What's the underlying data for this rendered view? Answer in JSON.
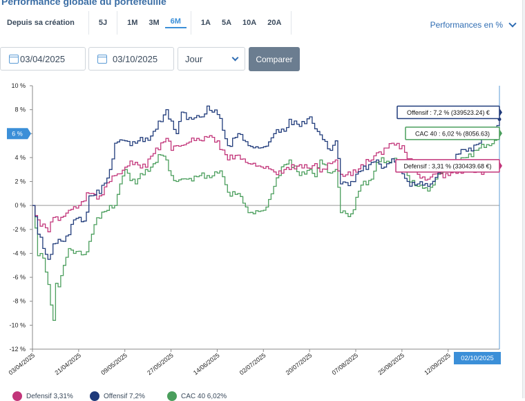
{
  "header": {
    "title": "Performance globale du portefeuille",
    "periods": [
      "Depuis sa création",
      "5J",
      "1M",
      "3M",
      "6M",
      "1A",
      "5A",
      "10A",
      "20A"
    ],
    "active_period": "6M",
    "perf_mode": "Performances en %"
  },
  "filters": {
    "date_from": "03/04/2025",
    "date_to": "03/10/2025",
    "granularity": "Jour",
    "compare_label": "Comparer"
  },
  "colors": {
    "defensif": "#c2357a",
    "offensif": "#1f3a7a",
    "cac40": "#4a9e5c",
    "accent": "#3b8fd8"
  },
  "chart_data": {
    "type": "line",
    "ylim": [
      -12,
      10
    ],
    "yticks": [
      "10 %",
      "8 %",
      "6 %",
      "4 %",
      "2 %",
      "0 %",
      "-2 %",
      "-4 %",
      "-6 %",
      "-8 %",
      "-10 %",
      "-12 %"
    ],
    "ytick_values": [
      10,
      8,
      6,
      4,
      2,
      0,
      -2,
      -4,
      -6,
      -8,
      -10,
      -12
    ],
    "x_labels": [
      "03/04/2025",
      "21/04/2025",
      "09/05/2025",
      "27/05/2025",
      "14/06/2025",
      "02/07/2025",
      "20/07/2025",
      "07/08/2025",
      "25/08/2025",
      "12/09/2025"
    ],
    "x_label_index": [
      0,
      18,
      36,
      54,
      72,
      90,
      108,
      126,
      144,
      162
    ],
    "n_points": 183,
    "crosshair_label": "02/10/2025",
    "crosshair_index": 182,
    "y_marker_label": "6 %",
    "y_marker_value": 6,
    "series": [
      {
        "name": "Offensif",
        "key": "offensif",
        "legend": "Offensif 7,2%",
        "tooltip": "Offensif : 7,2 % (339523.24) €",
        "final": 7.2,
        "anchors": [
          [
            0,
            0
          ],
          [
            2,
            -2.4
          ],
          [
            6,
            -4.5
          ],
          [
            8,
            -3.2
          ],
          [
            12,
            -3.0
          ],
          [
            16,
            -1.2
          ],
          [
            20,
            -1.3
          ],
          [
            22,
            0.8
          ],
          [
            26,
            1.0
          ],
          [
            30,
            3.0
          ],
          [
            32,
            5.2
          ],
          [
            36,
            5.4
          ],
          [
            40,
            5.2
          ],
          [
            46,
            5.8
          ],
          [
            50,
            7.0
          ],
          [
            52,
            8.0
          ],
          [
            56,
            6.0
          ],
          [
            58,
            7.8
          ],
          [
            62,
            7.2
          ],
          [
            66,
            7.4
          ],
          [
            68,
            8.3
          ],
          [
            72,
            7.6
          ],
          [
            76,
            5.0
          ],
          [
            80,
            6.0
          ],
          [
            84,
            5.0
          ],
          [
            88,
            4.8
          ],
          [
            90,
            4.9
          ],
          [
            94,
            6.0
          ],
          [
            98,
            6.2
          ],
          [
            100,
            7.2
          ],
          [
            104,
            6.6
          ],
          [
            108,
            7.4
          ],
          [
            110,
            6.4
          ],
          [
            112,
            5.9
          ],
          [
            116,
            4.6
          ],
          [
            118,
            5.4
          ],
          [
            120,
            1.8
          ],
          [
            124,
            2.0
          ],
          [
            128,
            2.9
          ],
          [
            132,
            3.6
          ],
          [
            134,
            3.8
          ],
          [
            136,
            3.1
          ],
          [
            140,
            3.9
          ],
          [
            142,
            3.1
          ],
          [
            146,
            2.0
          ],
          [
            150,
            1.8
          ],
          [
            154,
            1.6
          ],
          [
            158,
            2.7
          ],
          [
            162,
            3.4
          ],
          [
            166,
            4.3
          ],
          [
            170,
            4.8
          ],
          [
            174,
            5.2
          ],
          [
            176,
            5.5
          ],
          [
            180,
            6.3
          ],
          [
            182,
            7.2
          ]
        ]
      },
      {
        "name": "Defensif",
        "key": "defensif",
        "legend": "Defensif 3,31%",
        "tooltip": "Defensif : 3,31 % (330439.68 €)",
        "final": 3.31,
        "anchors": [
          [
            0,
            0
          ],
          [
            2,
            -1.2
          ],
          [
            6,
            -2.2
          ],
          [
            8,
            -1.0
          ],
          [
            12,
            -0.9
          ],
          [
            14,
            -0.4
          ],
          [
            16,
            -0.1
          ],
          [
            18,
            0.0
          ],
          [
            22,
            1.0
          ],
          [
            26,
            0.8
          ],
          [
            30,
            2.0
          ],
          [
            32,
            2.5
          ],
          [
            36,
            3.2
          ],
          [
            40,
            3.6
          ],
          [
            44,
            3.2
          ],
          [
            48,
            4.8
          ],
          [
            52,
            5.6
          ],
          [
            54,
            4.6
          ],
          [
            56,
            5.0
          ],
          [
            60,
            5.2
          ],
          [
            64,
            5.6
          ],
          [
            66,
            5.4
          ],
          [
            68,
            5.7
          ],
          [
            72,
            5.4
          ],
          [
            76,
            3.8
          ],
          [
            80,
            4.2
          ],
          [
            84,
            3.5
          ],
          [
            88,
            3.3
          ],
          [
            90,
            3.1
          ],
          [
            94,
            2.8
          ],
          [
            98,
            3.0
          ],
          [
            100,
            3.0
          ],
          [
            104,
            3.4
          ],
          [
            108,
            3.1
          ],
          [
            110,
            3.5
          ],
          [
            112,
            2.8
          ],
          [
            116,
            3.5
          ],
          [
            118,
            3.8
          ],
          [
            120,
            2.6
          ],
          [
            124,
            2.5
          ],
          [
            128,
            3.4
          ],
          [
            132,
            3.8
          ],
          [
            134,
            4.4
          ],
          [
            138,
            4.8
          ],
          [
            140,
            5.2
          ],
          [
            144,
            5.0
          ],
          [
            146,
            3.9
          ],
          [
            150,
            2.6
          ],
          [
            154,
            2.2
          ],
          [
            158,
            2.7
          ],
          [
            162,
            2.5
          ],
          [
            166,
            3.0
          ],
          [
            170,
            2.8
          ],
          [
            174,
            2.8
          ],
          [
            178,
            3.1
          ],
          [
            182,
            3.31
          ]
        ]
      },
      {
        "name": "CAC 40",
        "key": "cac40",
        "legend": "CAC 40  6,02%",
        "tooltip": "CAC 40 : 6,02 % (8056.63)",
        "final": 6.02,
        "anchors": [
          [
            0,
            0
          ],
          [
            2,
            -4.2
          ],
          [
            4,
            -4.4
          ],
          [
            6,
            -6.6
          ],
          [
            8,
            -9.6
          ],
          [
            9,
            -6.5
          ],
          [
            10,
            -6.8
          ],
          [
            12,
            -5.0
          ],
          [
            14,
            -3.6
          ],
          [
            16,
            -4.0
          ],
          [
            20,
            -4.1
          ],
          [
            22,
            -3.0
          ],
          [
            24,
            -1.6
          ],
          [
            28,
            -0.5
          ],
          [
            30,
            0.0
          ],
          [
            32,
            0.0
          ],
          [
            34,
            1.8
          ],
          [
            36,
            3.0
          ],
          [
            40,
            1.8
          ],
          [
            44,
            3.0
          ],
          [
            48,
            3.6
          ],
          [
            50,
            4.2
          ],
          [
            52,
            3.8
          ],
          [
            54,
            2.5
          ],
          [
            56,
            2.0
          ],
          [
            60,
            2.2
          ],
          [
            64,
            2.4
          ],
          [
            68,
            2.5
          ],
          [
            72,
            2.7
          ],
          [
            74,
            2.4
          ],
          [
            76,
            1.1
          ],
          [
            80,
            1.0
          ],
          [
            84,
            -0.6
          ],
          [
            88,
            -0.5
          ],
          [
            90,
            -0.4
          ],
          [
            94,
            1.6
          ],
          [
            98,
            3.4
          ],
          [
            100,
            3.8
          ],
          [
            104,
            2.5
          ],
          [
            108,
            3.0
          ],
          [
            110,
            2.4
          ],
          [
            112,
            3.8
          ],
          [
            116,
            2.7
          ],
          [
            118,
            3.0
          ],
          [
            120,
            -0.6
          ],
          [
            124,
            -0.7
          ],
          [
            128,
            1.7
          ],
          [
            132,
            2.2
          ],
          [
            134,
            3.6
          ],
          [
            138,
            3.7
          ],
          [
            140,
            3.9
          ],
          [
            142,
            3.8
          ],
          [
            146,
            2.5
          ],
          [
            150,
            1.6
          ],
          [
            154,
            1.2
          ],
          [
            158,
            2.6
          ],
          [
            162,
            3.0
          ],
          [
            166,
            3.5
          ],
          [
            170,
            4.3
          ],
          [
            174,
            4.8
          ],
          [
            178,
            5.0
          ],
          [
            182,
            6.02
          ]
        ]
      }
    ]
  }
}
